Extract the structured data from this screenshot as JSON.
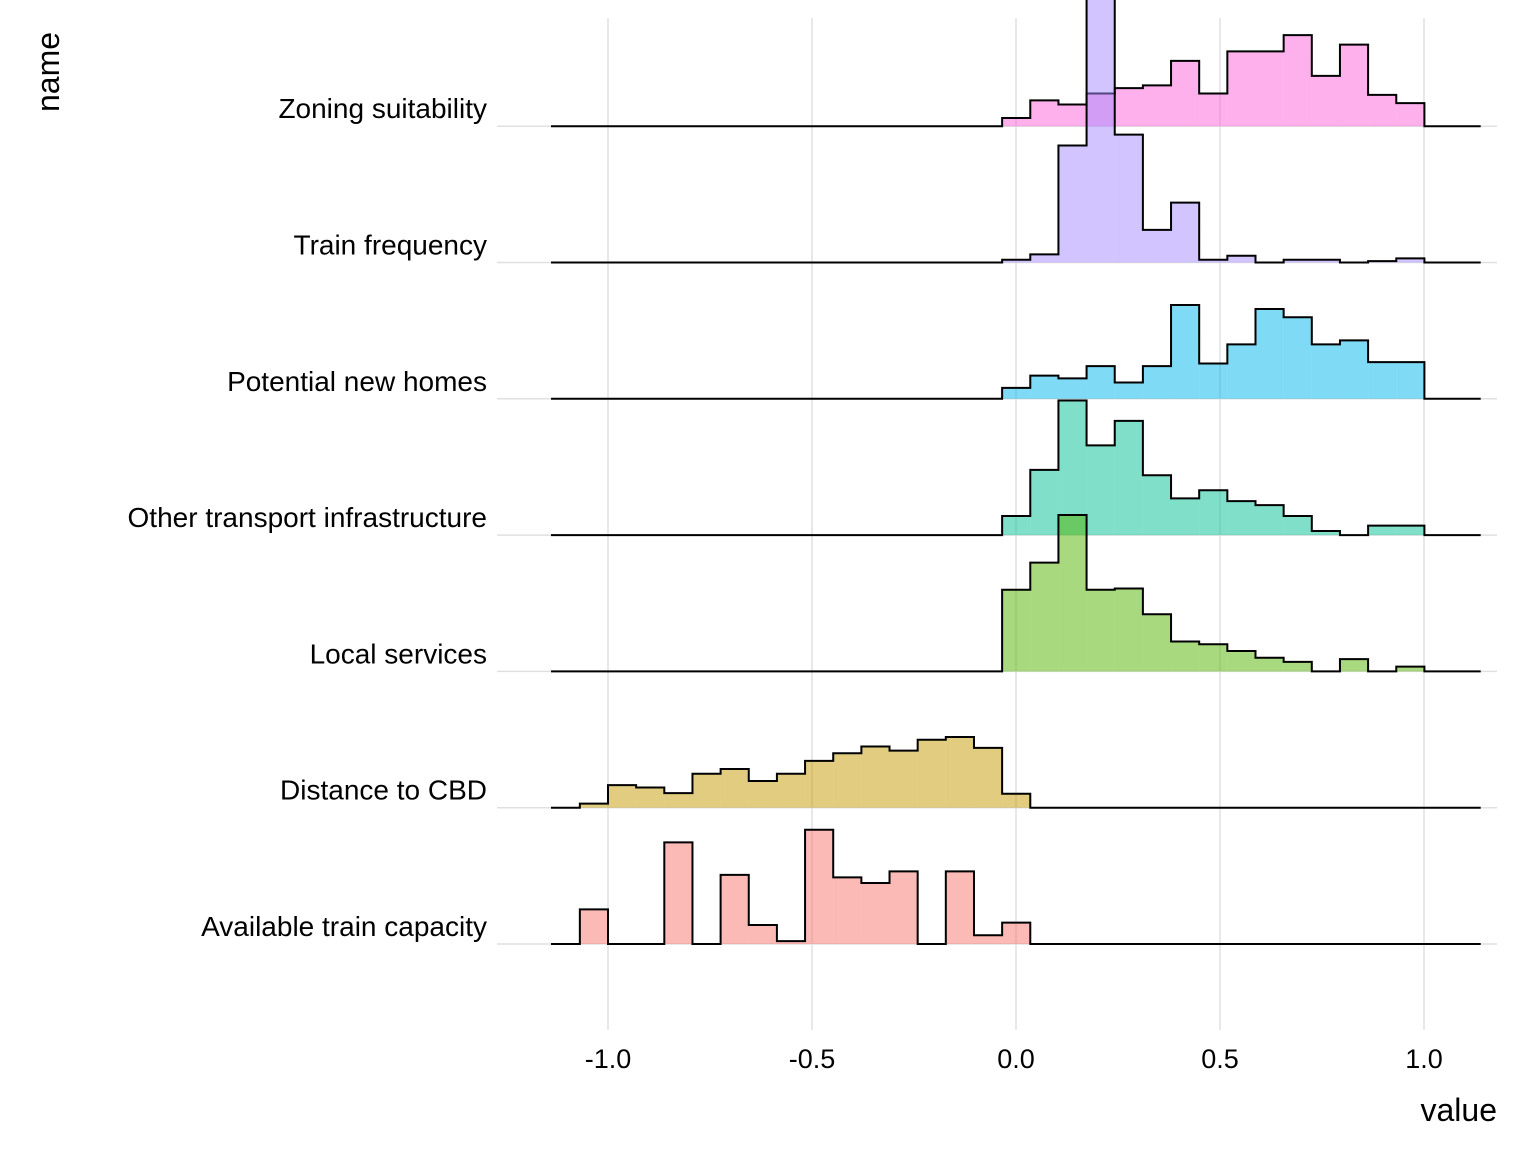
{
  "chart_data": {
    "type": "ridgeline-histogram",
    "xlabel": "value",
    "ylabel": "name",
    "xlim": [
      -1.2,
      1.2
    ],
    "grid": true,
    "legend": "none",
    "xticks": [
      {
        "value": -1.0,
        "label": "-1.0"
      },
      {
        "value": -0.5,
        "label": "-0.5"
      },
      {
        "value": 0.0,
        "label": "0.0"
      },
      {
        "value": 0.5,
        "label": "0.5"
      },
      {
        "value": 1.0,
        "label": "1.0"
      }
    ],
    "bin_edges_start": -1.138,
    "bin_width": 0.069,
    "series": [
      {
        "name": "Available train capacity",
        "color": "#F8766D",
        "values": [
          0,
          0.255,
          0,
          0,
          0.747,
          0,
          0.508,
          0.14,
          0.021,
          0.84,
          0.49,
          0.449,
          0.534,
          0,
          0.534,
          0.064,
          0.157,
          0,
          0,
          0,
          0,
          0,
          0,
          0,
          0,
          0,
          0,
          0,
          0,
          0,
          0,
          0,
          0
        ]
      },
      {
        "name": "Distance to CBD",
        "color": "#C49A00",
        "values": [
          0,
          0.03,
          0.166,
          0.149,
          0.107,
          0.25,
          0.285,
          0.196,
          0.25,
          0.344,
          0.4,
          0.45,
          0.42,
          0.5,
          0.52,
          0.44,
          0.103,
          0,
          0,
          0,
          0,
          0,
          0,
          0,
          0,
          0,
          0,
          0,
          0,
          0,
          0,
          0,
          0
        ]
      },
      {
        "name": "Local services",
        "color": "#53B400",
        "values": [
          0,
          0,
          0,
          0,
          0,
          0,
          0,
          0,
          0,
          0,
          0,
          0,
          0,
          0,
          0,
          0,
          0.6,
          0.8,
          1.15,
          0.6,
          0.61,
          0.42,
          0.22,
          0.2,
          0.15,
          0.1,
          0.07,
          0,
          0.09,
          0,
          0.035,
          0,
          0
        ]
      },
      {
        "name": "Other transport infrastructure",
        "color": "#00C094",
        "values": [
          0,
          0,
          0,
          0,
          0,
          0,
          0,
          0,
          0,
          0,
          0,
          0,
          0,
          0,
          0,
          0,
          0.14,
          0.48,
          0.99,
          0.66,
          0.84,
          0.44,
          0.27,
          0.33,
          0.25,
          0.22,
          0.14,
          0.03,
          0,
          0.07,
          0.07,
          0,
          0
        ]
      },
      {
        "name": "Potential new homes",
        "color": "#00B6EB",
        "values": [
          0,
          0,
          0,
          0,
          0,
          0,
          0,
          0,
          0,
          0,
          0,
          0,
          0,
          0,
          0,
          0,
          0.08,
          0.17,
          0.15,
          0.24,
          0.12,
          0.24,
          0.69,
          0.26,
          0.4,
          0.66,
          0.6,
          0.4,
          0.43,
          0.27,
          0.27,
          0,
          0
        ]
      },
      {
        "name": "Train frequency",
        "color": "#A58AFF",
        "values": [
          0,
          0,
          0,
          0,
          0,
          0,
          0,
          0,
          0,
          0,
          0,
          0,
          0,
          0,
          0,
          0,
          0.02,
          0.06,
          0.86,
          2.19,
          0.94,
          0.24,
          0.44,
          0.02,
          0.05,
          0,
          0.02,
          0.02,
          0,
          0.01,
          0.03,
          0,
          0
        ]
      },
      {
        "name": "Zoning suitability",
        "color": "#FB61D7",
        "values": [
          0,
          0,
          0,
          0,
          0,
          0,
          0,
          0,
          0,
          0,
          0,
          0,
          0,
          0,
          0,
          0,
          0.06,
          0.19,
          0.16,
          0.24,
          0.28,
          0.3,
          0.48,
          0.24,
          0.55,
          0.55,
          0.67,
          0.37,
          0.6,
          0.23,
          0.17,
          0,
          0
        ]
      }
    ]
  }
}
